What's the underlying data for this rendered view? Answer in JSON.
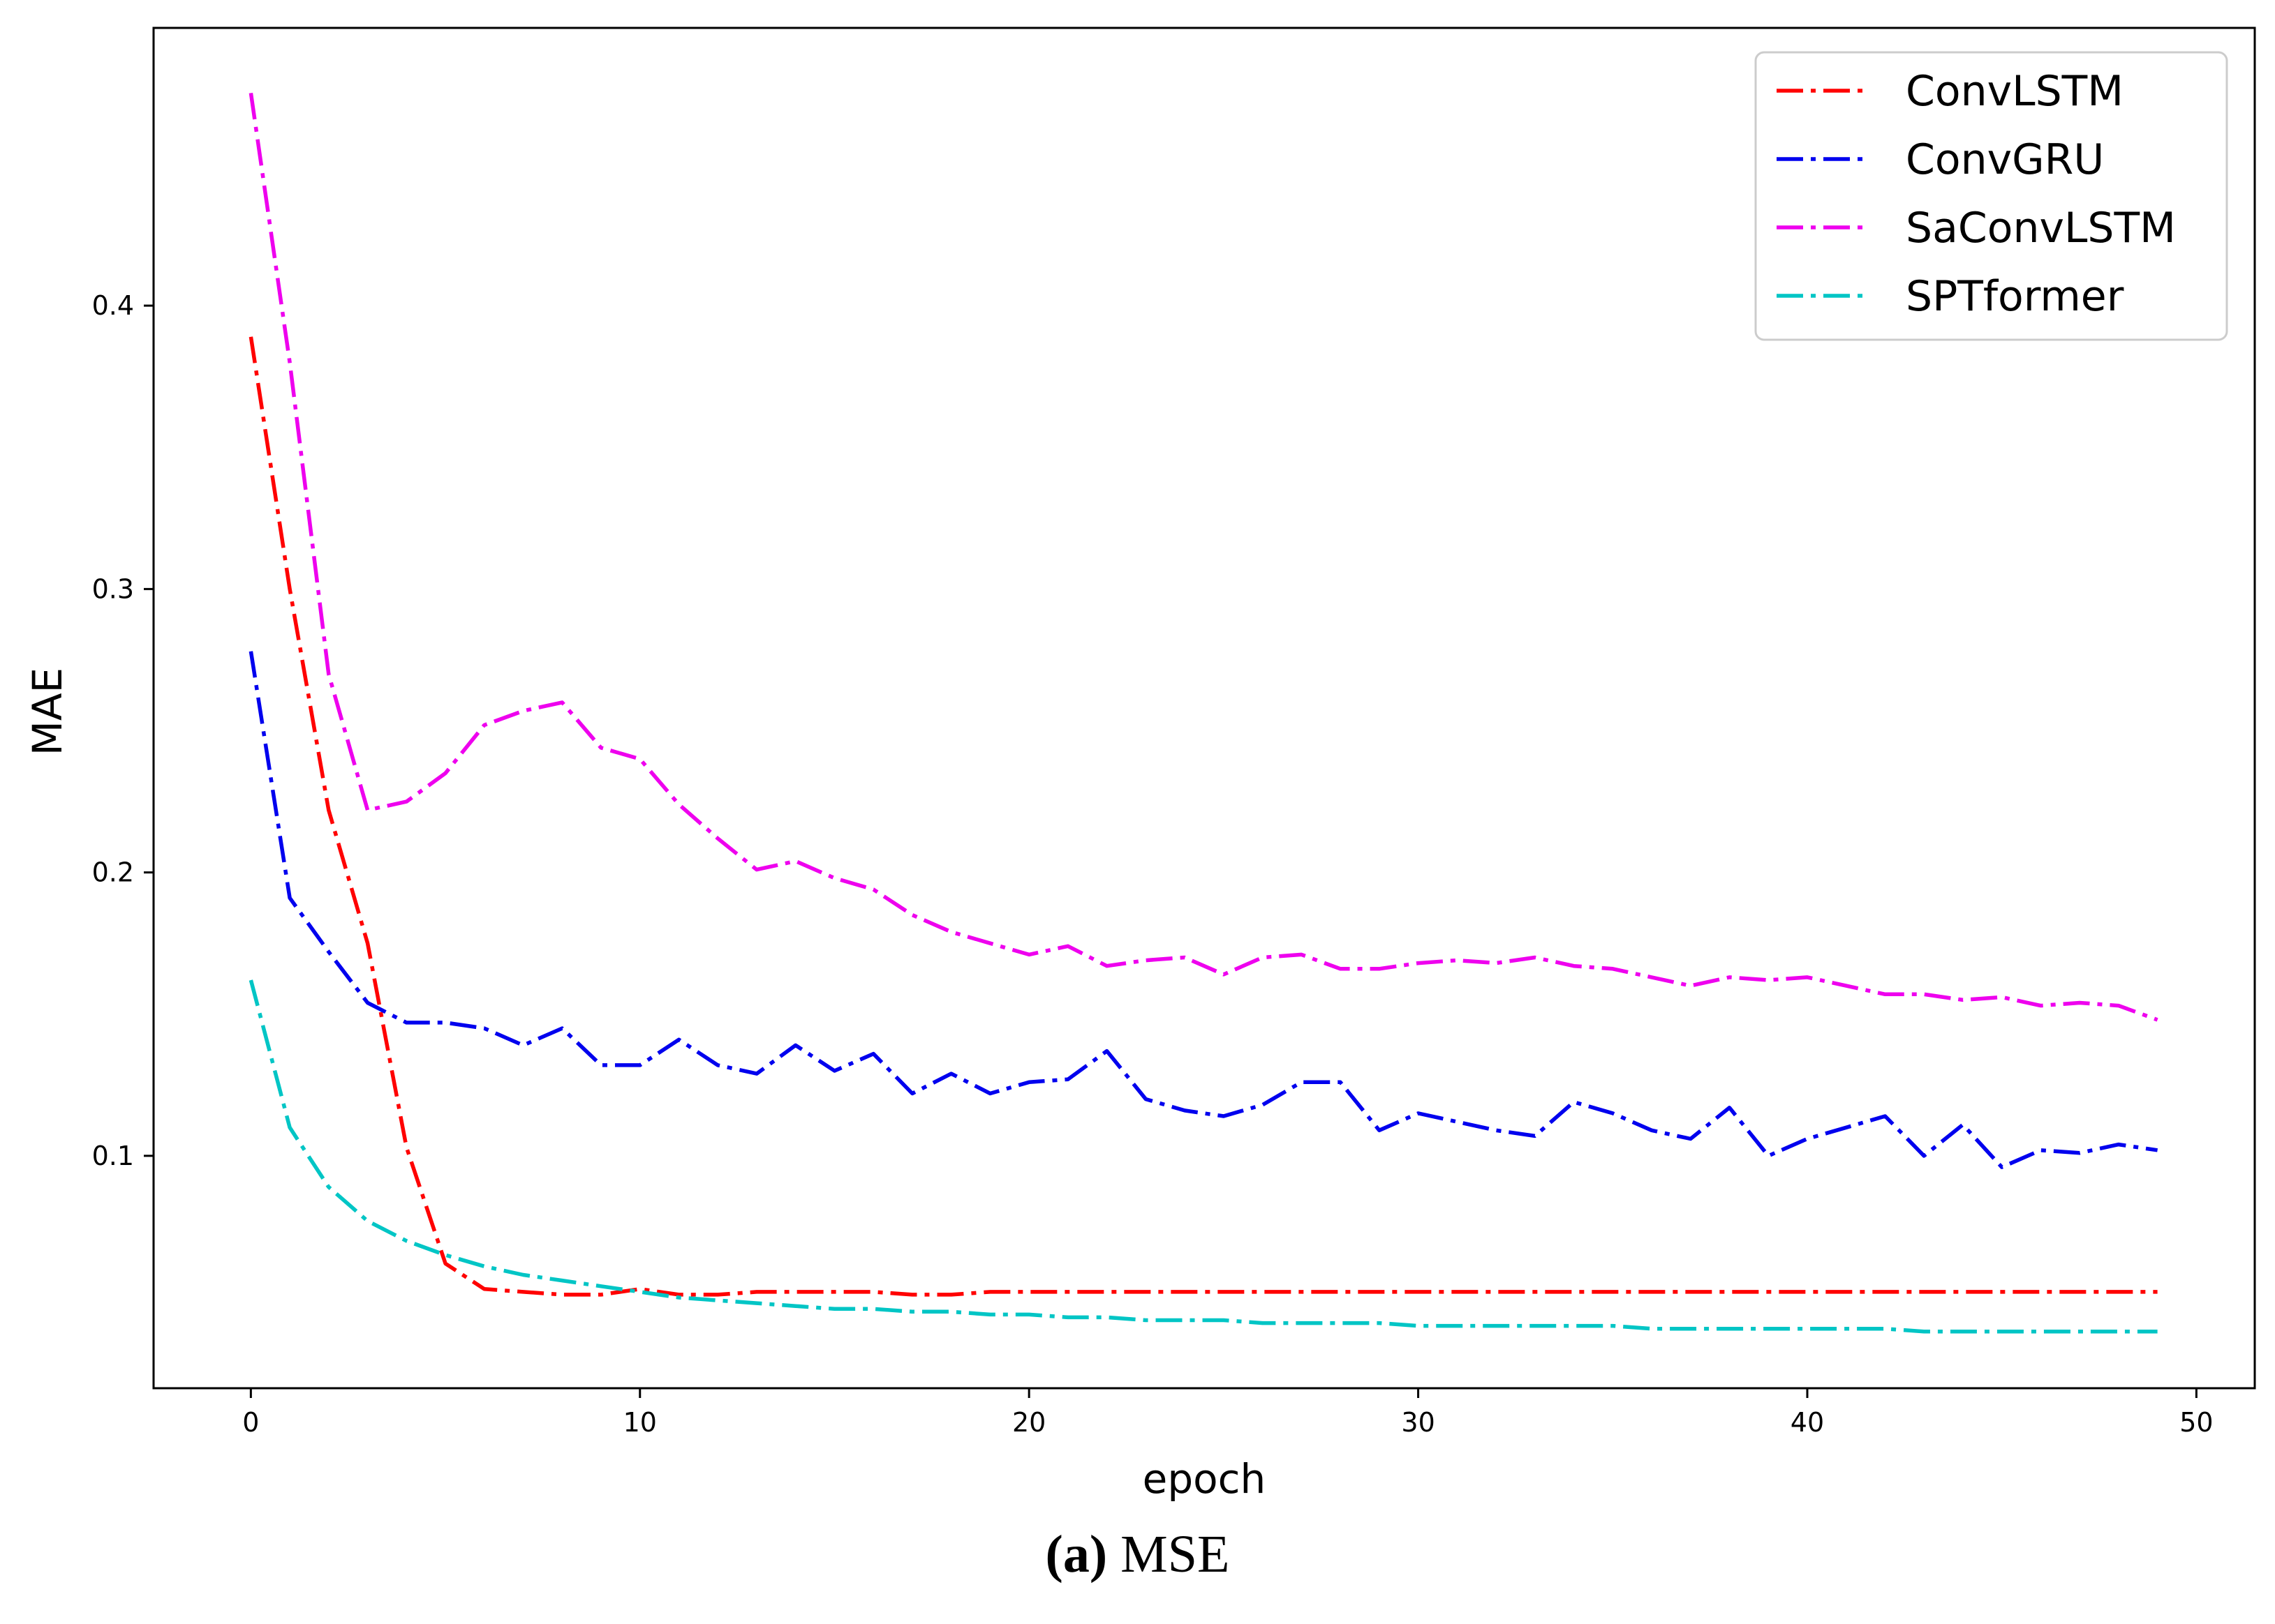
{
  "chart_data": {
    "type": "line",
    "title": "",
    "xlabel": "epoch",
    "ylabel": "MAE",
    "xlim": [
      -2.5,
      51.5
    ],
    "ylim": [
      0.018,
      0.498
    ],
    "xticks": [
      0,
      10,
      20,
      30,
      40,
      50
    ],
    "yticks": [
      0.1,
      0.2,
      0.3,
      0.4
    ],
    "xtick_labels": [
      "0",
      "10",
      "20",
      "30",
      "40",
      "50"
    ],
    "ytick_labels": [
      "0.1",
      "0.2",
      "0.3",
      "0.4"
    ],
    "grid": false,
    "legend_position": "top-right",
    "x": [
      0,
      1,
      2,
      3,
      4,
      5,
      6,
      7,
      8,
      9,
      10,
      11,
      12,
      13,
      14,
      15,
      16,
      17,
      18,
      19,
      20,
      21,
      22,
      23,
      24,
      25,
      26,
      27,
      28,
      29,
      30,
      31,
      32,
      33,
      34,
      35,
      36,
      37,
      38,
      39,
      40,
      41,
      42,
      43,
      44,
      45,
      46,
      47,
      48,
      49
    ],
    "series": [
      {
        "name": "ConvLSTM",
        "color": "#ff0000",
        "values": [
          0.389,
          0.3,
          0.222,
          0.175,
          0.103,
          0.062,
          0.053,
          0.052,
          0.051,
          0.051,
          0.053,
          0.051,
          0.051,
          0.052,
          0.052,
          0.052,
          0.052,
          0.051,
          0.051,
          0.052,
          0.052,
          0.052,
          0.052,
          0.052,
          0.052,
          0.052,
          0.052,
          0.052,
          0.052,
          0.052,
          0.052,
          0.052,
          0.052,
          0.052,
          0.052,
          0.052,
          0.052,
          0.052,
          0.052,
          0.052,
          0.052,
          0.052,
          0.052,
          0.052,
          0.052,
          0.052,
          0.052,
          0.052,
          0.052,
          0.052
        ]
      },
      {
        "name": "ConvGRU",
        "color": "#0000ee",
        "values": [
          0.278,
          0.191,
          0.172,
          0.154,
          0.147,
          0.147,
          0.145,
          0.139,
          0.145,
          0.132,
          0.132,
          0.141,
          0.132,
          0.129,
          0.139,
          0.13,
          0.136,
          0.122,
          0.129,
          0.122,
          0.126,
          0.127,
          0.137,
          0.12,
          0.116,
          0.114,
          0.118,
          0.126,
          0.126,
          0.109,
          0.115,
          0.112,
          0.109,
          0.107,
          0.119,
          0.115,
          0.109,
          0.106,
          0.117,
          0.1,
          0.106,
          0.11,
          0.114,
          0.1,
          0.111,
          0.096,
          0.102,
          0.101,
          0.104,
          0.102
        ]
      },
      {
        "name": "SaConvLSTM",
        "color": "#ee00ee",
        "values": [
          0.475,
          0.38,
          0.27,
          0.222,
          0.225,
          0.235,
          0.252,
          0.257,
          0.26,
          0.244,
          0.24,
          0.224,
          0.212,
          0.201,
          0.204,
          0.198,
          0.194,
          0.185,
          0.179,
          0.175,
          0.171,
          0.174,
          0.167,
          0.169,
          0.17,
          0.164,
          0.17,
          0.171,
          0.166,
          0.166,
          0.168,
          0.169,
          0.168,
          0.17,
          0.167,
          0.166,
          0.163,
          0.16,
          0.163,
          0.162,
          0.163,
          0.16,
          0.157,
          0.157,
          0.155,
          0.156,
          0.153,
          0.154,
          0.153,
          0.148
        ]
      },
      {
        "name": "SPTformer",
        "color": "#00c5c5",
        "values": [
          0.162,
          0.11,
          0.089,
          0.077,
          0.07,
          0.065,
          0.061,
          0.058,
          0.056,
          0.054,
          0.052,
          0.05,
          0.049,
          0.048,
          0.047,
          0.046,
          0.046,
          0.045,
          0.045,
          0.044,
          0.044,
          0.043,
          0.043,
          0.042,
          0.042,
          0.042,
          0.041,
          0.041,
          0.041,
          0.041,
          0.04,
          0.04,
          0.04,
          0.04,
          0.04,
          0.04,
          0.039,
          0.039,
          0.039,
          0.039,
          0.039,
          0.039,
          0.039,
          0.038,
          0.038,
          0.038,
          0.038,
          0.038,
          0.038,
          0.038
        ]
      }
    ]
  },
  "caption": {
    "label": "(a)",
    "text": " MSE"
  }
}
